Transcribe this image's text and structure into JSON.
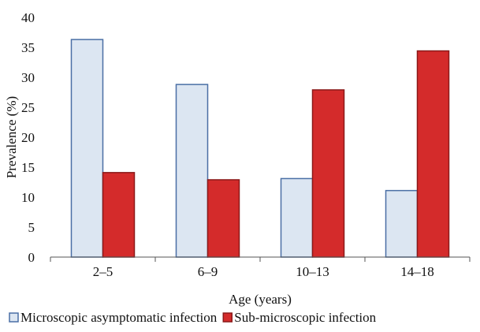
{
  "chart_data": {
    "type": "bar",
    "title": "",
    "xlabel": "Age (years)",
    "ylabel": "Prevalence (%)",
    "categories": [
      "2–5",
      "6–9",
      "10–13",
      "14–18"
    ],
    "ylim": [
      0,
      40
    ],
    "yticks": [
      "0",
      "5",
      "10",
      "15",
      "20",
      "25",
      "30",
      "35",
      "40"
    ],
    "grid": false,
    "legend_position": "bottom",
    "series": [
      {
        "name": "Microscopic asymptomatic infection",
        "values": [
          36.3,
          28.8,
          13.1,
          11.1
        ],
        "color": "#dce6f2",
        "stroke": "#4a6fa5"
      },
      {
        "name": "Sub-microscopic infection",
        "values": [
          14.1,
          12.9,
          27.9,
          34.4
        ],
        "color": "#d42b2b",
        "stroke": "#8b1a1a"
      }
    ]
  }
}
